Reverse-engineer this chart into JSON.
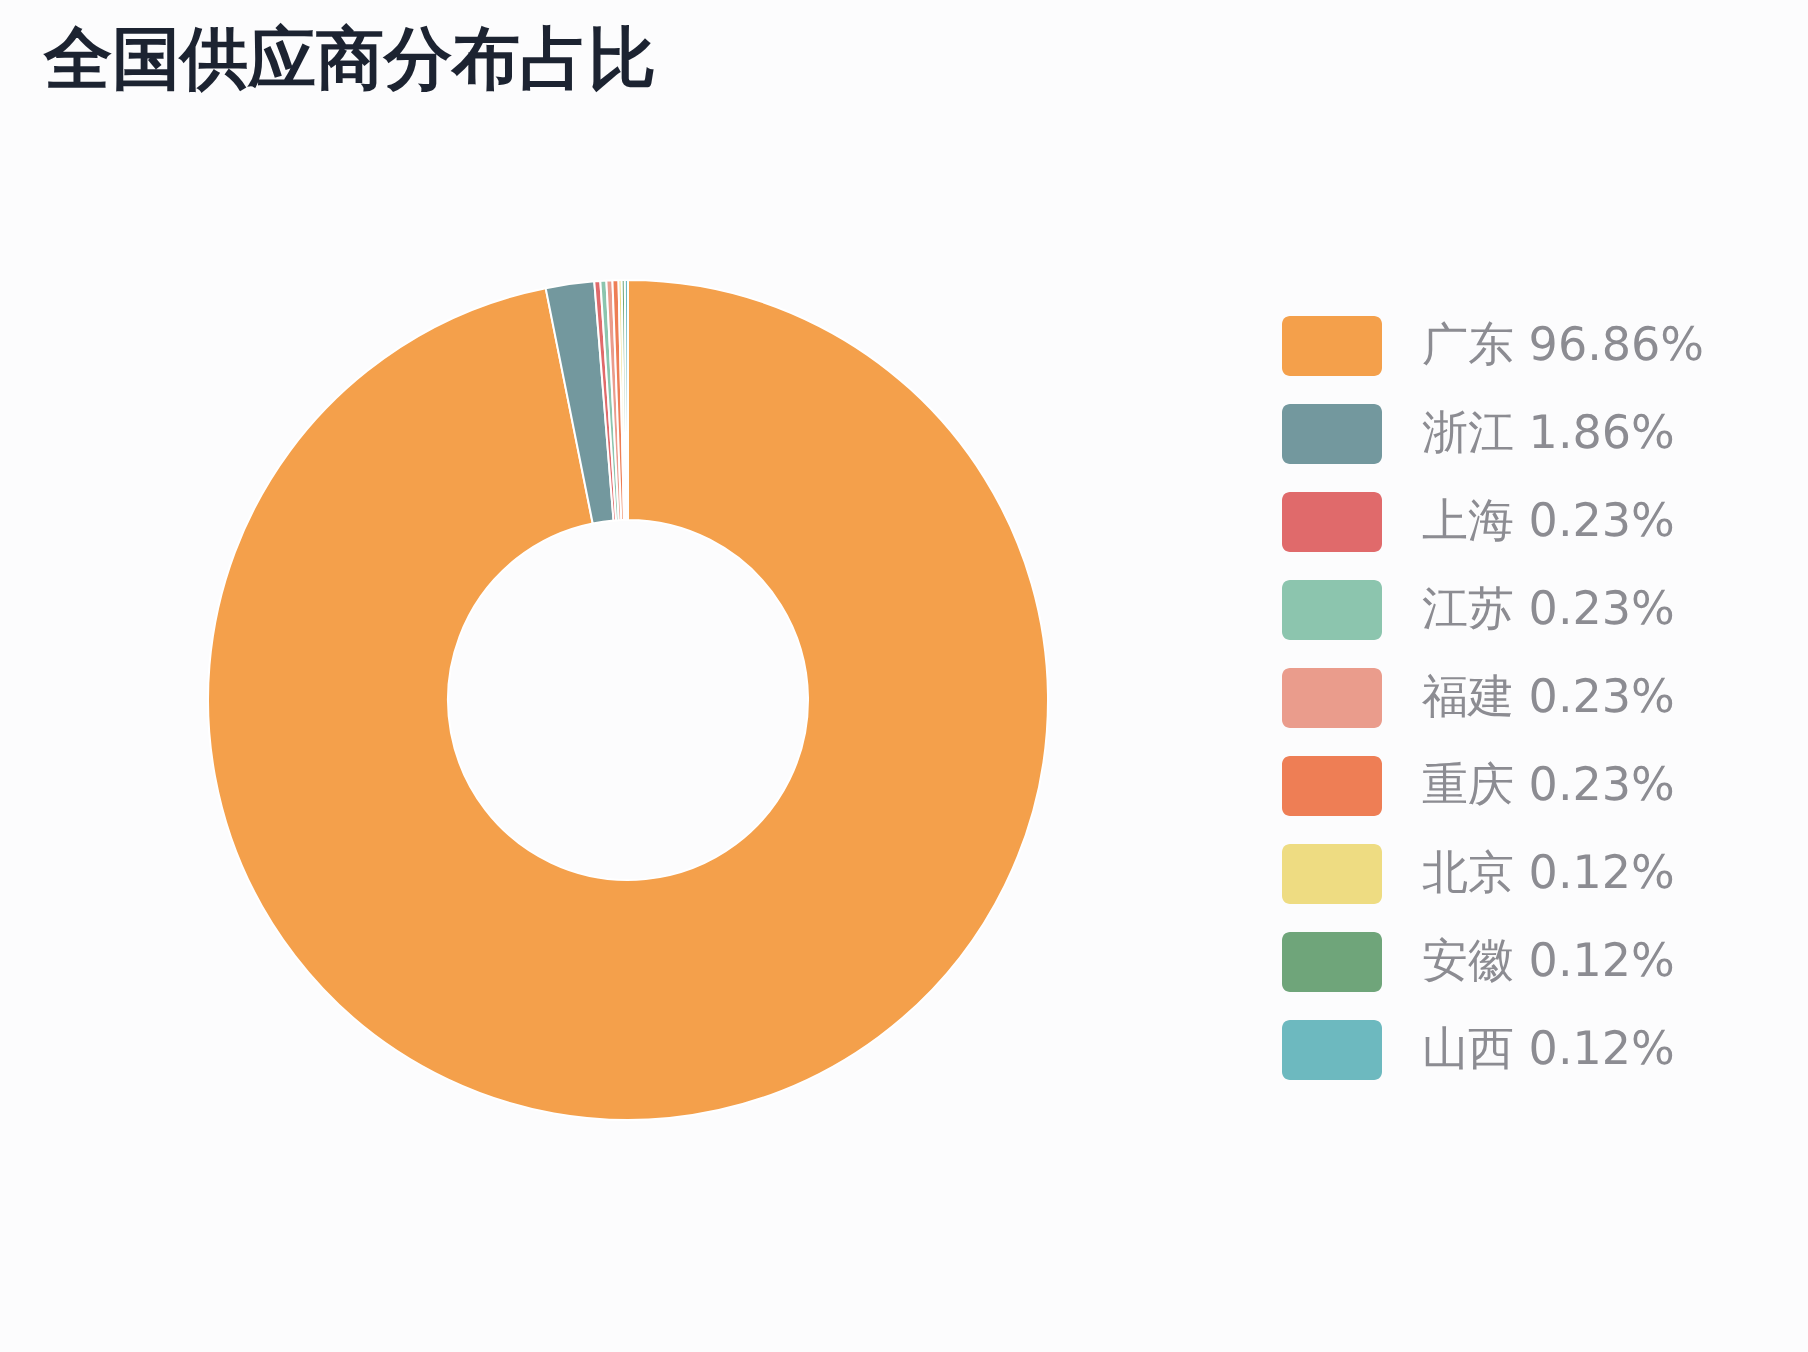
{
  "chart_data": {
    "type": "donut",
    "title": "全国供应商分布占比",
    "categories": [
      "广东",
      "浙江",
      "上海",
      "江苏",
      "福建",
      "重庆",
      "北京",
      "安徽",
      "山西"
    ],
    "values": [
      96.86,
      1.86,
      0.23,
      0.23,
      0.23,
      0.23,
      0.12,
      0.12,
      0.12
    ],
    "colors": [
      "#f4a04b",
      "#73989e",
      "#e06a6b",
      "#8cc5ae",
      "#ea9c8c",
      "#ee7e55",
      "#eedc82",
      "#6fa57a",
      "#6db9bf"
    ],
    "value_labels": [
      "96.86%",
      "1.86%",
      "0.23%",
      "0.23%",
      "0.23%",
      "0.23%",
      "0.12%",
      "0.12%",
      "0.12%"
    ],
    "legend": "right"
  }
}
